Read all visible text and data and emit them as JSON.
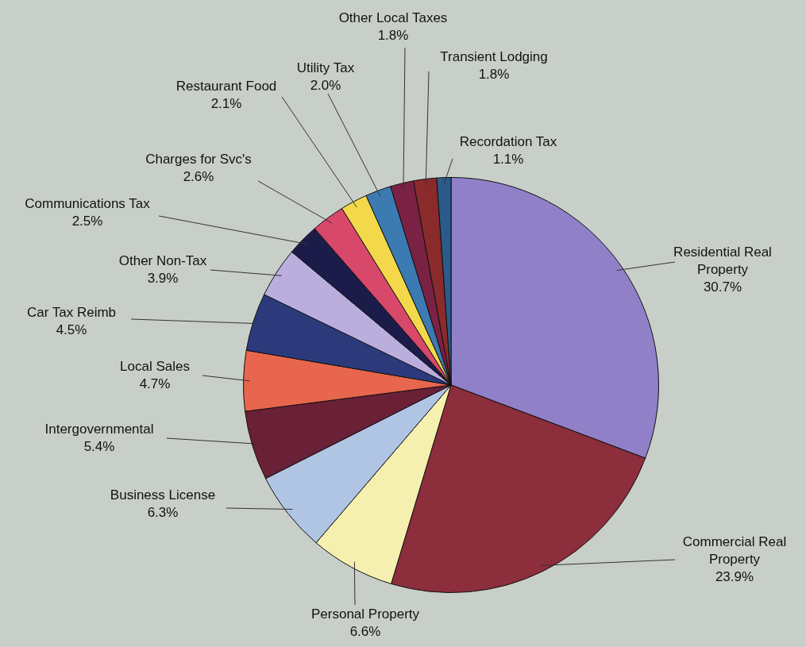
{
  "chart_data": {
    "type": "pie",
    "categories": [
      "Residential Real Property",
      "Commercial Real Property",
      "Personal Property",
      "Business License",
      "Intergovernmental",
      "Local Sales",
      "Car Tax Reimb",
      "Other Non-Tax",
      "Communications Tax",
      "Charges for Svc's",
      "Restaurant Food",
      "Utility Tax",
      "Other Local Taxes",
      "Transient Lodging",
      "Recordation Tax"
    ],
    "values": [
      30.7,
      23.9,
      6.6,
      6.3,
      5.4,
      4.7,
      4.5,
      3.9,
      2.5,
      2.6,
      2.1,
      2.0,
      1.8,
      1.8,
      1.1
    ],
    "value_labels": [
      "30.7%",
      "23.9%",
      "6.6%",
      "6.3%",
      "5.4%",
      "4.7%",
      "4.5%",
      "3.9%",
      "2.5%",
      "2.6%",
      "2.1%",
      "2.0%",
      "1.8%",
      "1.8%",
      "1.1%"
    ],
    "colors": [
      "#9080c8",
      "#8c2e3c",
      "#f6f0b0",
      "#b0c4e4",
      "#6a2036",
      "#e8664e",
      "#2c3a7c",
      "#baaede",
      "#1c1c4a",
      "#d8486a",
      "#f2d84a",
      "#3c7ab2",
      "#7a2244",
      "#8a2a2a",
      "#2c5a8a"
    ],
    "legend": false
  }
}
